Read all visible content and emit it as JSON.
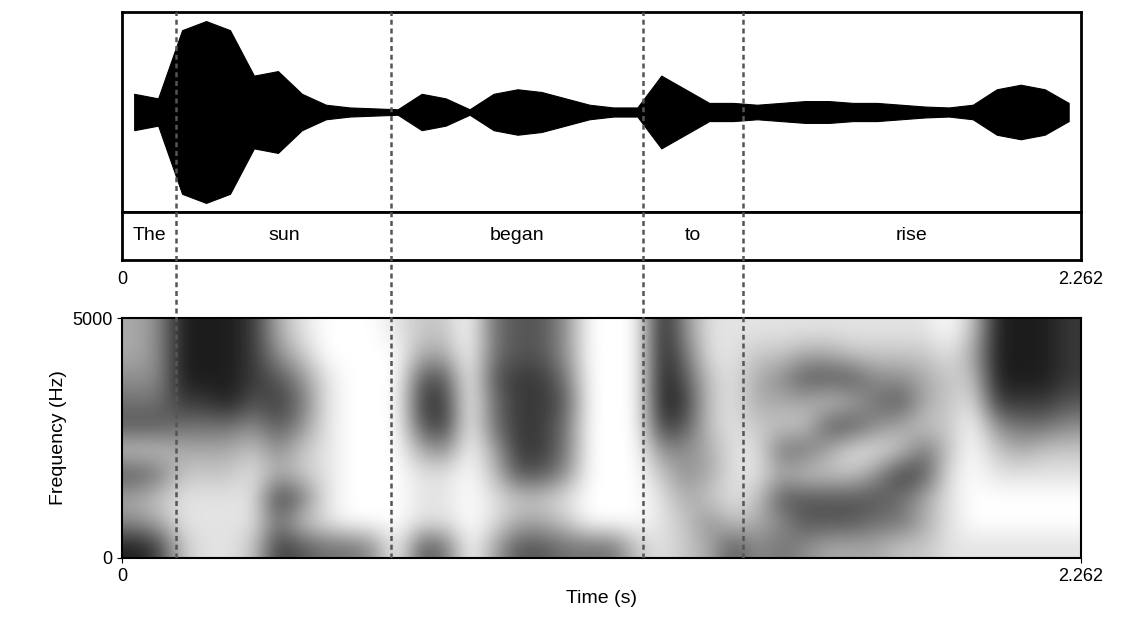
{
  "chart_data": [
    {
      "type": "waveform",
      "xlim": [
        0,
        2.262
      ],
      "ylim": [
        -1.1,
        1.1
      ],
      "tick_labels": false,
      "amplitude": [
        0.2,
        0.15,
        0.9,
        1.0,
        0.9,
        0.4,
        0.45,
        0.2,
        0.08,
        0.05,
        0.04,
        0.03,
        0.2,
        0.15,
        0.03,
        0.2,
        0.25,
        0.22,
        0.15,
        0.08,
        0.05,
        0.05,
        0.4,
        0.25,
        0.1,
        0.1,
        0.08,
        0.1,
        0.12,
        0.12,
        0.1,
        0.1,
        0.08,
        0.06,
        0.05,
        0.08,
        0.25,
        0.3,
        0.25,
        0.1
      ]
    },
    {
      "type": "segments",
      "xlim": [
        0,
        2.262
      ],
      "xticks": [
        0,
        2.262
      ],
      "segments": [
        {
          "label": "The",
          "start": 0,
          "end": 0.128
        },
        {
          "label": "sun",
          "start": 0.128,
          "end": 0.635
        },
        {
          "label": "began",
          "start": 0.635,
          "end": 1.228
        },
        {
          "label": "to",
          "start": 1.228,
          "end": 1.464
        },
        {
          "label": "rise",
          "start": 1.464,
          "end": 2.262
        }
      ]
    },
    {
      "type": "spectrogram",
      "xlim": [
        0,
        2.262
      ],
      "ylim": [
        0,
        5000
      ],
      "xticks": [
        0,
        2.262
      ],
      "yticks": [
        0,
        5000
      ],
      "x_label": "Time (s)",
      "y_label": "Frequency (Hz)",
      "zlim": [
        0,
        9
      ],
      "cells": [
        [
          8,
          4,
          3,
          6,
          2,
          6,
          5,
          4,
          3,
          3
        ],
        [
          7,
          3,
          2,
          5,
          2,
          6,
          5,
          4,
          4,
          4
        ],
        [
          2,
          1,
          1,
          2,
          3,
          5,
          7,
          8,
          8,
          8
        ],
        [
          1,
          1,
          1,
          2,
          3,
          5,
          7,
          8,
          8,
          8
        ],
        [
          1,
          1,
          1,
          2,
          3,
          5,
          8,
          8,
          8,
          8
        ],
        [
          2,
          1,
          1,
          1,
          2,
          4,
          6,
          7,
          7,
          7
        ],
        [
          7,
          5,
          7,
          3,
          4,
          6,
          7,
          6,
          4,
          3
        ],
        [
          6,
          2,
          5,
          2,
          2,
          4,
          5,
          4,
          2,
          1
        ],
        [
          5,
          1,
          1,
          1,
          1,
          1,
          1,
          1,
          0,
          0
        ],
        [
          5,
          0,
          0,
          0,
          0,
          0,
          0,
          0,
          0,
          0
        ],
        [
          4,
          0,
          0,
          0,
          0,
          0,
          0,
          0,
          0,
          0
        ],
        [
          0,
          0,
          0,
          0,
          0,
          0,
          0,
          0,
          0,
          1
        ],
        [
          6,
          1,
          1,
          1,
          3,
          6,
          7,
          6,
          3,
          2
        ],
        [
          5,
          1,
          1,
          1,
          4,
          7,
          7,
          6,
          3,
          2
        ],
        [
          0,
          0,
          0,
          0,
          0,
          0,
          0,
          0,
          0,
          0
        ],
        [
          3,
          1,
          1,
          2,
          3,
          5,
          5,
          6,
          5,
          5
        ],
        [
          6,
          3,
          2,
          6,
          7,
          7,
          7,
          7,
          6,
          6
        ],
        [
          6,
          3,
          2,
          6,
          7,
          7,
          7,
          7,
          6,
          6
        ],
        [
          5,
          2,
          1,
          4,
          5,
          5,
          6,
          5,
          4,
          4
        ],
        [
          5,
          0,
          0,
          0,
          0,
          0,
          0,
          0,
          0,
          0
        ],
        [
          5,
          0,
          0,
          0,
          0,
          0,
          0,
          0,
          0,
          0
        ],
        [
          2,
          0,
          0,
          0,
          0,
          0,
          0,
          0,
          0,
          0
        ],
        [
          1,
          1,
          1,
          2,
          4,
          7,
          8,
          8,
          8,
          8
        ],
        [
          2,
          2,
          3,
          4,
          4,
          6,
          7,
          6,
          5,
          4
        ],
        [
          3,
          4,
          2,
          3,
          3,
          2,
          2,
          2,
          1,
          1
        ],
        [
          6,
          2,
          1,
          1,
          1,
          1,
          1,
          1,
          1,
          1
        ],
        [
          4,
          3,
          2,
          1,
          1,
          2,
          3,
          3,
          2,
          1
        ],
        [
          5,
          4,
          6,
          3,
          5,
          2,
          3,
          4,
          2,
          1
        ],
        [
          4,
          6,
          6,
          2,
          5,
          2,
          3,
          6,
          3,
          1
        ],
        [
          3,
          6,
          6,
          2,
          3,
          6,
          2,
          6,
          3,
          1
        ],
        [
          3,
          6,
          6,
          2,
          1,
          6,
          3,
          6,
          2,
          1
        ],
        [
          3,
          5,
          6,
          4,
          1,
          4,
          5,
          4,
          2,
          1
        ],
        [
          2,
          5,
          5,
          7,
          2,
          3,
          6,
          4,
          2,
          1
        ],
        [
          2,
          3,
          3,
          6,
          5,
          2,
          3,
          3,
          2,
          1
        ],
        [
          1,
          1,
          1,
          1,
          2,
          2,
          2,
          2,
          1,
          0
        ],
        [
          1,
          0,
          0,
          0,
          0,
          0,
          1,
          2,
          3,
          2
        ],
        [
          1,
          0,
          0,
          1,
          2,
          4,
          7,
          8,
          8,
          8
        ],
        [
          1,
          0,
          0,
          1,
          3,
          5,
          7,
          8,
          8,
          8
        ],
        [
          1,
          0,
          0,
          1,
          2,
          5,
          7,
          8,
          8,
          8
        ],
        [
          1,
          0,
          0,
          1,
          2,
          4,
          6,
          7,
          7,
          7
        ]
      ]
    }
  ]
}
